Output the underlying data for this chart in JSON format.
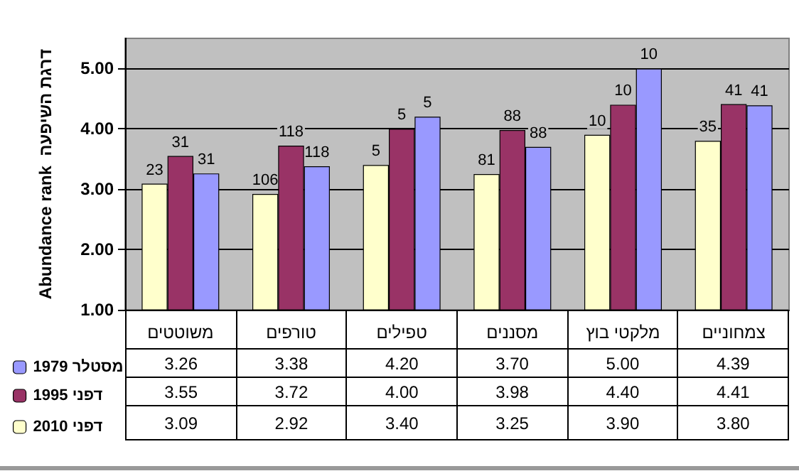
{
  "chart_data": {
    "type": "bar",
    "ylabel": "Abundance rank  דרגת השיפעה",
    "categories": [
      "משוטטים",
      "טורפים",
      "טפילים",
      "מסננים",
      "מלקטי בוץ",
      "צמחוניים"
    ],
    "series": [
      {
        "name": "דפני 2010",
        "color": "#ffffcc",
        "values": [
          3.09,
          2.92,
          3.4,
          3.25,
          3.9,
          3.8
        ],
        "value_labels": [
          "3.09",
          "2.92",
          "3.40",
          "3.25",
          "3.90",
          "3.80"
        ]
      },
      {
        "name": "דפני 1995",
        "color": "#993366",
        "values": [
          3.55,
          3.72,
          4.0,
          3.98,
          4.4,
          4.41
        ],
        "value_labels": [
          "3.55",
          "3.72",
          "4.00",
          "3.98",
          "4.40",
          "4.41"
        ]
      },
      {
        "name": "מסטלר 1979",
        "color": "#9999ff",
        "values": [
          3.26,
          3.38,
          4.2,
          3.7,
          5.0,
          4.39
        ],
        "value_labels": [
          "3.26",
          "3.38",
          "4.20",
          "3.70",
          "5.00",
          "4.39"
        ]
      }
    ],
    "annotations": [
      "23",
      "31",
      "31",
      "106",
      "118",
      "118",
      "5",
      "5",
      "5",
      "81",
      "88",
      "88",
      "10",
      "10",
      "10",
      "35",
      "41",
      "41"
    ],
    "ylim": [
      1,
      5.5
    ],
    "yticks": [
      {
        "value": 1,
        "label": "1.00"
      },
      {
        "value": 2,
        "label": "2.00"
      },
      {
        "value": 3,
        "label": "3.00"
      },
      {
        "value": 4,
        "label": "4.00"
      },
      {
        "value": 5,
        "label": "5.00"
      }
    ],
    "grid": "y",
    "legend": "bottom left"
  }
}
